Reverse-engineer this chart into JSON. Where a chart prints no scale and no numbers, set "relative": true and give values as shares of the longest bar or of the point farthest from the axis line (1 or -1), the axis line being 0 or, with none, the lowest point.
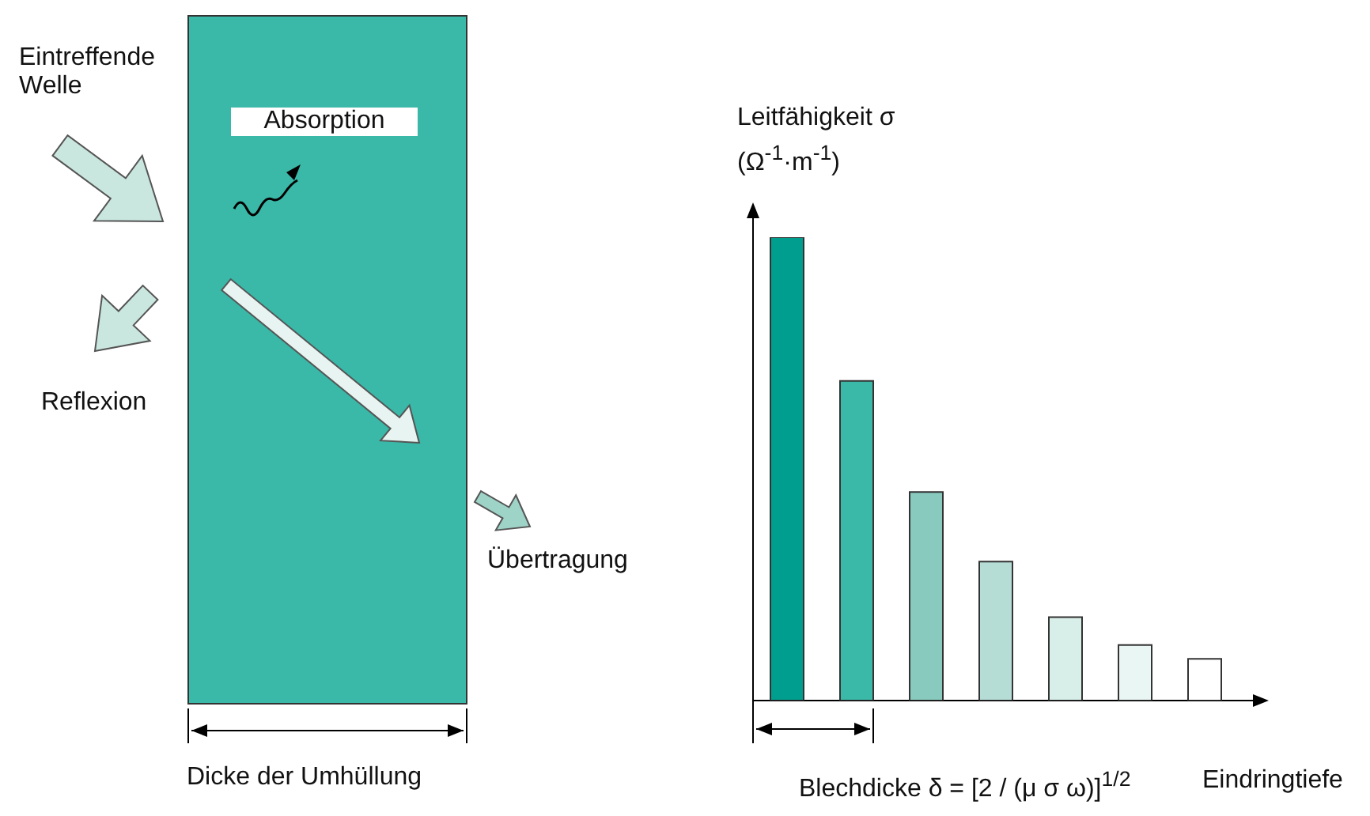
{
  "chart_data": {
    "type": "bar",
    "relative": true,
    "categories": [
      null,
      null,
      null,
      null,
      null,
      null,
      null
    ],
    "values": [
      1,
      0.69,
      0.45,
      0.3,
      0.18,
      0.12,
      0.09
    ],
    "colors": [
      "#009e8e",
      "#3ab8a8",
      "#88cabe",
      "#b5ddd6",
      "#d8efe9",
      "#eaf6f3",
      "#ffffff"
    ],
    "ylabel": "Leitfähigkeit σ (Ω$^{-1}$·m$^{-1}$)",
    "xlabel": "Eindringtiefe",
    "annotations": [
      "Eintreffende Welle",
      "Absorption",
      "Reflexion",
      "Übertragung",
      "Dicke der Umhüllung",
      "Blechdicke δ = [2 / (μ σ ω)]$^{1/2}$"
    ],
    "grid": false,
    "legend": false
  }
}
